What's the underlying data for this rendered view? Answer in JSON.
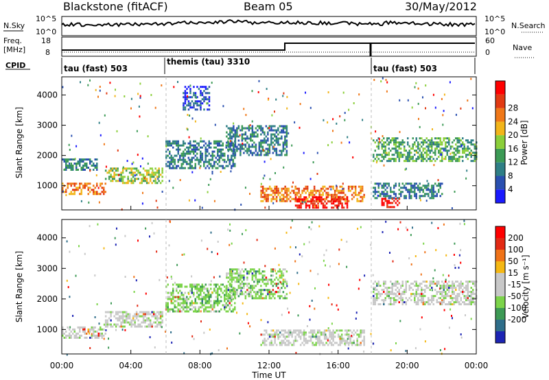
{
  "header": {
    "station": "Blackstone (fitACF)",
    "beam": "Beam 05",
    "date": "30/May/2012"
  },
  "panels": {
    "nsky": {
      "label": "N.Sky",
      "ticks": [
        "10^5",
        "10^0"
      ],
      "right_label": "N.Search",
      "right_ticks": [
        "10^5",
        "10^0"
      ]
    },
    "freq": {
      "label": "Freq.",
      "unit": "[MHz]",
      "ticks": [
        "18",
        "8"
      ],
      "right_label": "Nave",
      "right_ticks": [
        "60",
        "0"
      ]
    },
    "cpid": {
      "label": "CPID",
      "segments": [
        {
          "name": "tau (fast) 503",
          "start_h": 0,
          "end_h": 6
        },
        {
          "name": "themis (tau) 3310",
          "start_h": 6,
          "end_h": 18
        },
        {
          "name": "tau (fast) 503",
          "start_h": 18,
          "end_h": 24
        }
      ]
    }
  },
  "chart_data": [
    {
      "type": "heatmap",
      "name": "power",
      "ylabel": "Slant Range [km]",
      "yticks": [
        "1000",
        "2000",
        "3000",
        "4000"
      ],
      "ylim": [
        200,
        4600
      ],
      "xlim": [
        0,
        24
      ],
      "colorbar": {
        "label": "Power [dB]",
        "ticks": [
          "4",
          "8",
          "12",
          "16",
          "20",
          "24",
          "28"
        ],
        "colors": [
          "#1a1aff",
          "#2a50b0",
          "#2f7f86",
          "#3c9a55",
          "#8bcf3a",
          "#f2b51a",
          "#f07818",
          "#e23a12",
          "#ff0000"
        ]
      },
      "features": [
        {
          "t0": 0.0,
          "t1": 2.5,
          "r0": 700,
          "r1": 1100,
          "level": 6
        },
        {
          "t0": 2.5,
          "t1": 5.8,
          "r0": 1100,
          "r1": 1600,
          "level": 4
        },
        {
          "t0": 0.0,
          "t1": 2.0,
          "r0": 1500,
          "r1": 1900,
          "level": 2
        },
        {
          "t0": 6.0,
          "t1": 10.0,
          "r0": 1600,
          "r1": 2500,
          "level": 2
        },
        {
          "t0": 7.0,
          "t1": 8.5,
          "r0": 3500,
          "r1": 4300,
          "level": 1
        },
        {
          "t0": 9.5,
          "t1": 13.0,
          "r0": 2000,
          "r1": 3000,
          "level": 2
        },
        {
          "t0": 11.5,
          "t1": 17.5,
          "r0": 500,
          "r1": 1000,
          "level": 6
        },
        {
          "t0": 13.5,
          "t1": 16.5,
          "r0": 250,
          "r1": 650,
          "level": 8
        },
        {
          "t0": 18.0,
          "t1": 22.0,
          "r0": 600,
          "r1": 1100,
          "level": 2
        },
        {
          "t0": 18.5,
          "t1": 19.5,
          "r0": 300,
          "r1": 600,
          "level": 8
        },
        {
          "t0": 18.0,
          "t1": 24.0,
          "r0": 1800,
          "r1": 2600,
          "level": 3
        }
      ]
    },
    {
      "type": "heatmap",
      "name": "velocity",
      "ylabel": "Slant Range [km]",
      "yticks": [
        "1000",
        "2000",
        "3000",
        "4000"
      ],
      "ylim": [
        200,
        4600
      ],
      "xlim": [
        0,
        24
      ],
      "xlabel": "Time UT",
      "xticks": [
        "00:00",
        "04:00",
        "08:00",
        "12:00",
        "16:00",
        "20:00",
        "00:00"
      ],
      "colorbar": {
        "label": "Velocity [m s⁻¹]",
        "ticks": [
          "200",
          "100",
          "50",
          "15",
          "-15",
          "-50",
          "-100",
          "-200"
        ],
        "colors": [
          "#1c24b4",
          "#2f6e8a",
          "#3d9a55",
          "#7cd44a",
          "#c8c8c8",
          "#c8c8c8",
          "#f5b814",
          "#f07318",
          "#e32a14",
          "#ff0000"
        ]
      },
      "features": [
        {
          "t0": 0.0,
          "t1": 2.5,
          "r0": 700,
          "r1": 1100,
          "level": 4
        },
        {
          "t0": 2.5,
          "t1": 5.8,
          "r0": 1100,
          "r1": 1600,
          "level": 4
        },
        {
          "t0": 6.0,
          "t1": 10.0,
          "r0": 1600,
          "r1": 2500,
          "level": 3
        },
        {
          "t0": 9.5,
          "t1": 13.0,
          "r0": 2000,
          "r1": 3000,
          "level": 3
        },
        {
          "t0": 11.5,
          "t1": 17.5,
          "r0": 500,
          "r1": 1000,
          "level": 4
        },
        {
          "t0": 18.0,
          "t1": 24.0,
          "r0": 1800,
          "r1": 2600,
          "level": 4
        }
      ]
    }
  ]
}
